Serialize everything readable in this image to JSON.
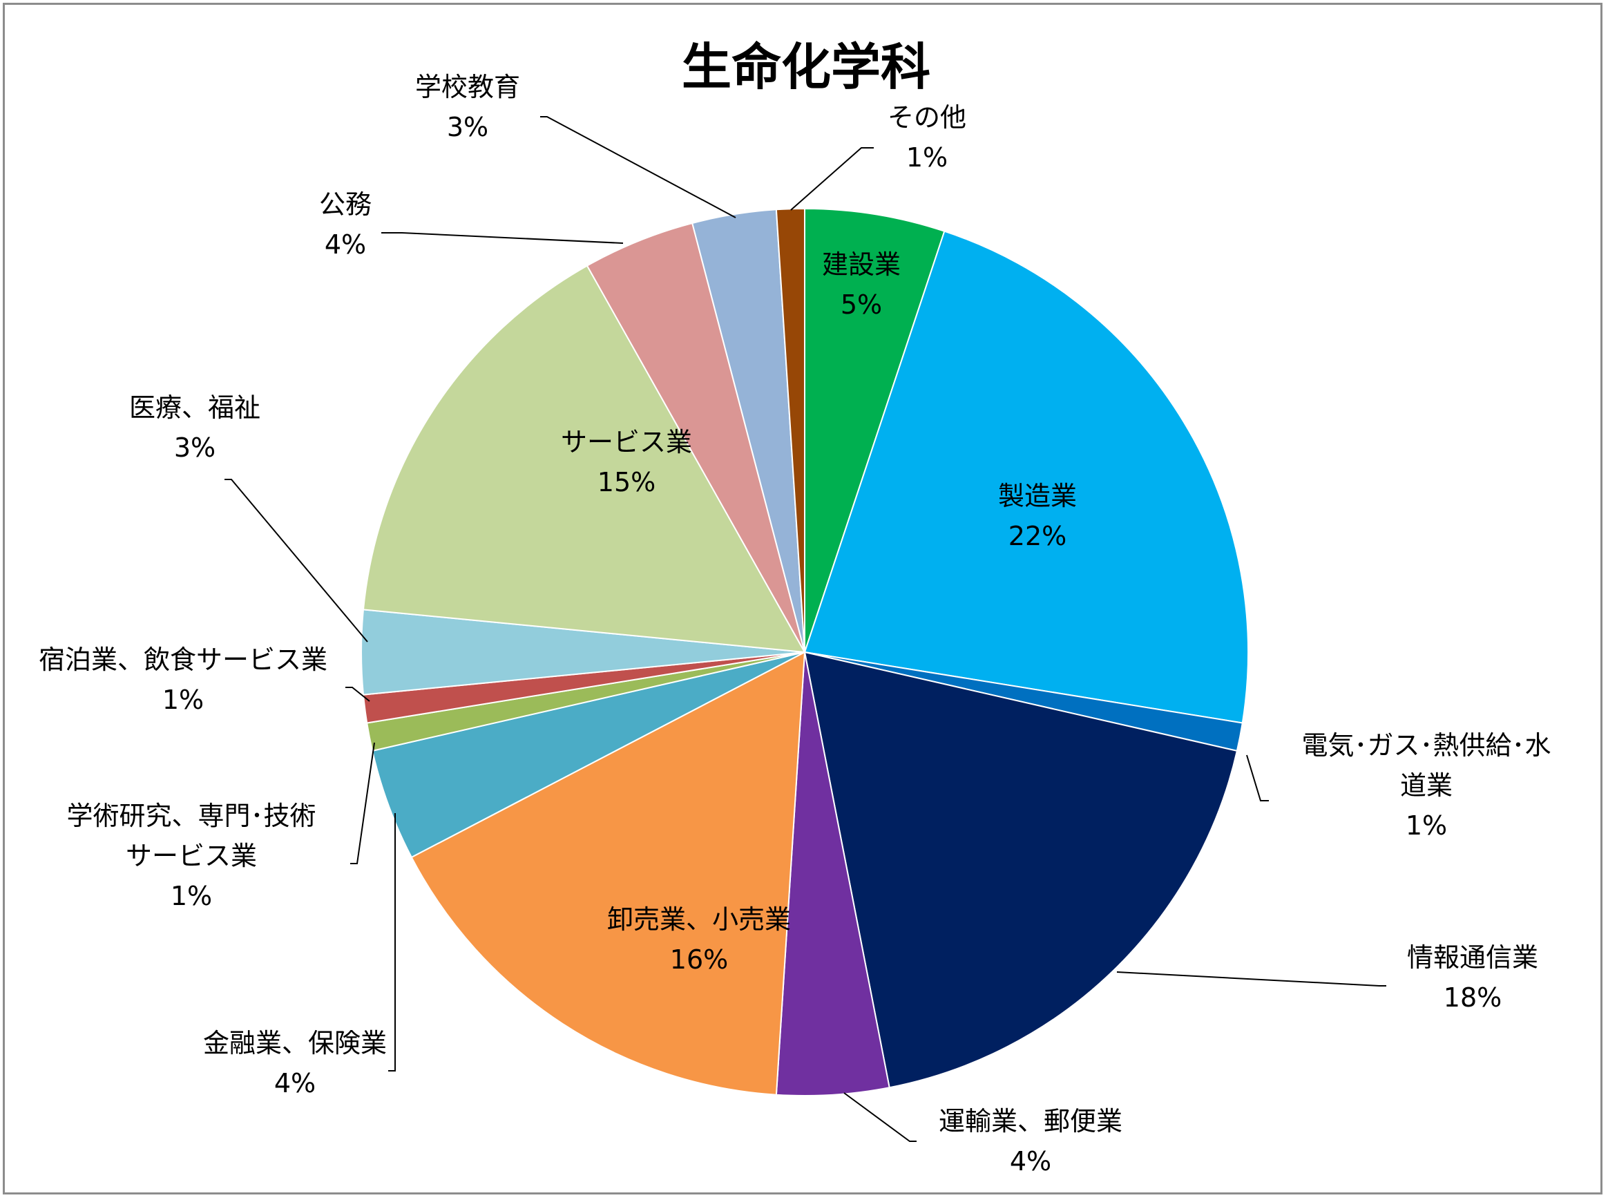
{
  "chart_data": {
    "type": "pie",
    "title": "生命化学科",
    "start_angle_deg": 0,
    "direction": "clockwise",
    "legend": "none",
    "slices": [
      {
        "name": "建設業",
        "label_lines": [
          "建設業"
        ],
        "value": 5,
        "value_text": "5%",
        "color": "#00B050"
      },
      {
        "name": "製造業",
        "label_lines": [
          "製造業"
        ],
        "value": 22,
        "value_text": "22%",
        "color": "#00B0F0"
      },
      {
        "name": "電気・ガス・熱供給・水道業",
        "label_lines": [
          "電気･ガス･熱供給･水",
          "道業"
        ],
        "value": 1,
        "value_text": "1%",
        "color": "#0070C0"
      },
      {
        "name": "情報通信業",
        "label_lines": [
          "情報通信業"
        ],
        "value": 18,
        "value_text": "18%",
        "color": "#002060"
      },
      {
        "name": "運輸業、郵便業",
        "label_lines": [
          "運輸業、郵便業"
        ],
        "value": 4,
        "value_text": "4%",
        "color": "#7030A0"
      },
      {
        "name": "卸売業、小売業",
        "label_lines": [
          "卸売業、小売業"
        ],
        "value": 16,
        "value_text": "16%",
        "color": "#F79646"
      },
      {
        "name": "金融業、保険業",
        "label_lines": [
          "金融業、保険業"
        ],
        "value": 4,
        "value_text": "4%",
        "color": "#4BACC6"
      },
      {
        "name": "学術研究、専門・技術サービス業",
        "label_lines": [
          "学術研究、専門･技術",
          "サービス業"
        ],
        "value": 1,
        "value_text": "1%",
        "color": "#9BBB59"
      },
      {
        "name": "宿泊業、飲食サービス業",
        "label_lines": [
          "宿泊業、飲食サービス業"
        ],
        "value": 1,
        "value_text": "1%",
        "color": "#C0504D"
      },
      {
        "name": "医療、福祉",
        "label_lines": [
          "医療、福祉"
        ],
        "value": 3,
        "value_text": "3%",
        "color": "#92CDDC"
      },
      {
        "name": "サービス業",
        "label_lines": [
          "サービス業"
        ],
        "value": 15,
        "value_text": "15%",
        "color": "#C4D79B"
      },
      {
        "name": "公務",
        "label_lines": [
          "公務"
        ],
        "value": 4,
        "value_text": "4%",
        "color": "#DA9694"
      },
      {
        "name": "学校教育",
        "label_lines": [
          "学校教育"
        ],
        "value": 3,
        "value_text": "3%",
        "color": "#95B3D7"
      },
      {
        "name": "その他",
        "label_lines": [
          "その他"
        ],
        "value": 1,
        "value_text": "1%",
        "color": "#974706"
      }
    ]
  }
}
